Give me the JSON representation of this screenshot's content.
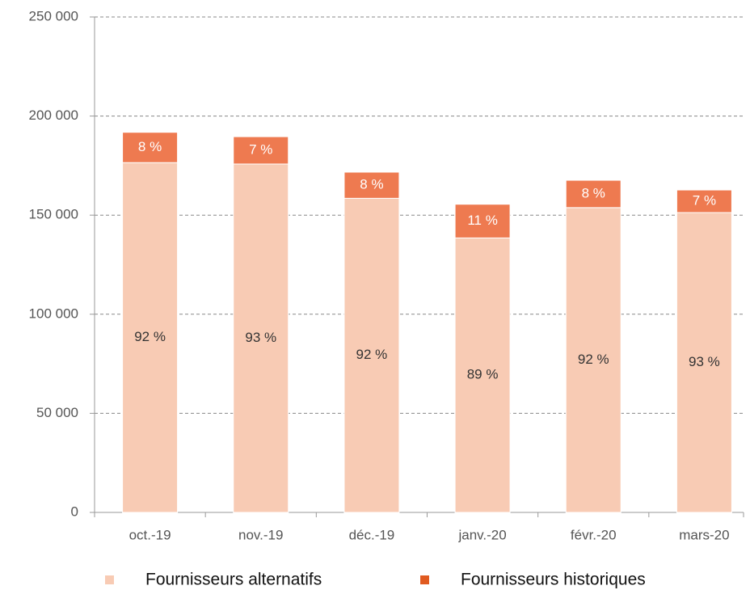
{
  "chart_data": {
    "type": "stacked_bar",
    "categories": [
      "oct.-19",
      "nov.-19",
      "déc.-19",
      "janv.-20",
      "févr.-20",
      "mars-20"
    ],
    "series": [
      {
        "name": "Fournisseurs alternatifs",
        "color": "#f8cbb4",
        "values": [
          176500,
          175800,
          158500,
          138500,
          153800,
          151300
        ],
        "share_labels": [
          "92 %",
          "93 %",
          "92 %",
          "89 %",
          "92 %",
          "93 %"
        ]
      },
      {
        "name": "Fournisseurs historiques",
        "color": "#ee7a50",
        "values": [
          15300,
          13800,
          13200,
          17000,
          13800,
          11400
        ],
        "share_labels": [
          "8 %",
          "7 %",
          "8 %",
          "11 %",
          "8 %",
          "7 %"
        ]
      }
    ],
    "ylim": [
      0,
      250000
    ],
    "yticks": [
      0,
      {
        "value": 50000,
        "label": "50 000"
      },
      {
        "value": 100000,
        "label": "100 000"
      },
      {
        "value": 150000,
        "label": "150 000"
      },
      {
        "value": 200000,
        "label": "200 000"
      },
      {
        "value": 250000,
        "label": "250 000"
      }
    ],
    "grid": true,
    "legend": "bottom"
  }
}
